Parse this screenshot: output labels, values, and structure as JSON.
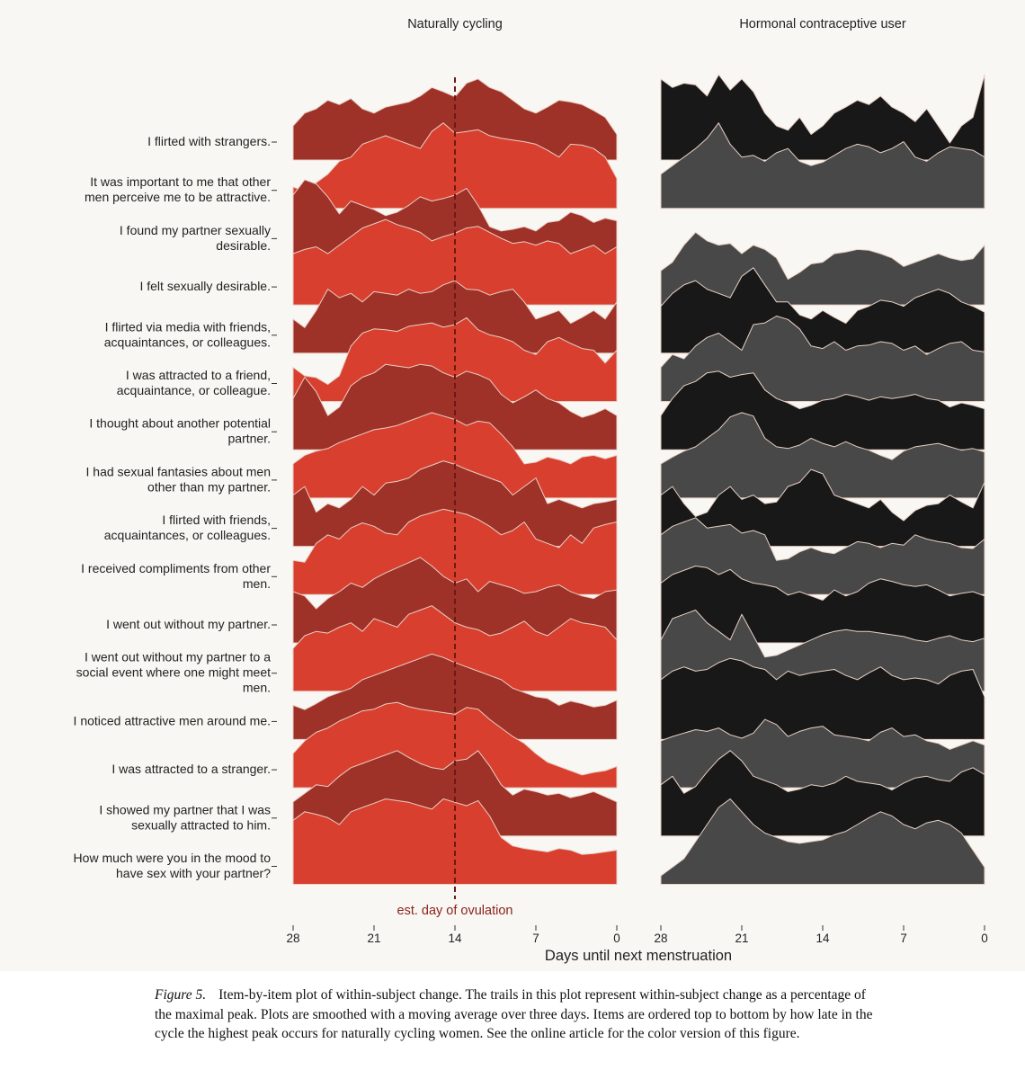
{
  "panel_titles": {
    "left": "Naturally cycling",
    "right": "Hormonal contraceptive user"
  },
  "colors": {
    "nc_dark": "#9e3128",
    "nc_light": "#d93f2f",
    "hc_dark": "#181818",
    "hc_light": "#484848",
    "ridge_outline": "#e8d0c4",
    "ovulation_line": "#6e1a14",
    "ovulation_text": "#8c231c"
  },
  "caption": {
    "figure_number": "Figure 5.",
    "text": "Item-by-item plot of within-subject change. The trails in this plot represent within-subject change as a percentage of the maximal peak. Plots are smoothed with a moving average over three days. Items are ordered top to bottom by how late in the cycle the highest peak occurs for naturally cycling women. See the online article for the color version of this figure."
  },
  "chart_data": {
    "type": "area",
    "subtype": "ridgeline",
    "xlabel": "Days until next menstruation",
    "xlim": [
      28,
      0
    ],
    "xticks": [
      28,
      21,
      14,
      7,
      0
    ],
    "ylabel": "",
    "y_unit": "% of maximal peak",
    "ylim": [
      0,
      100
    ],
    "annotation": {
      "label": "est. day of ovulation",
      "x": 14
    },
    "x": [
      28,
      27,
      26,
      25,
      24,
      23,
      22,
      21,
      20,
      19,
      18,
      17,
      16,
      15,
      14,
      13,
      12,
      11,
      10,
      9,
      8,
      7,
      6,
      5,
      4,
      3,
      2,
      1,
      0
    ],
    "items": [
      {
        "label": "I flirted with strangers.",
        "naturally_cycling": [
          40,
          55,
          60,
          70,
          65,
          72,
          60,
          55,
          62,
          65,
          68,
          75,
          85,
          80,
          74,
          90,
          95,
          85,
          80,
          70,
          60,
          55,
          62,
          70,
          68,
          65,
          58,
          50,
          30
        ],
        "hormonal_contraceptive": [
          95,
          85,
          90,
          88,
          75,
          100,
          82,
          95,
          80,
          55,
          40,
          35,
          50,
          30,
          40,
          55,
          62,
          70,
          65,
          75,
          62,
          55,
          45,
          60,
          40,
          20,
          40,
          50,
          100
        ]
      },
      {
        "label": "It was important to me that other men perceive me to be attractive.",
        "naturally_cycling": [
          25,
          20,
          30,
          40,
          55,
          60,
          75,
          80,
          85,
          80,
          75,
          70,
          90,
          100,
          88,
          90,
          92,
          85,
          82,
          80,
          78,
          75,
          68,
          60,
          75,
          74,
          70,
          60,
          35
        ],
        "hormonal_contraceptive": [
          40,
          50,
          60,
          70,
          82,
          100,
          75,
          60,
          62,
          55,
          65,
          70,
          55,
          50,
          54,
          62,
          70,
          75,
          72,
          65,
          70,
          78,
          60,
          55,
          65,
          72,
          70,
          68,
          60
        ]
      },
      {
        "label": "I found my partner sexually desirable.",
        "naturally_cycling": [
          72,
          90,
          85,
          70,
          50,
          65,
          60,
          55,
          48,
          52,
          60,
          70,
          65,
          68,
          72,
          80,
          60,
          35,
          30,
          32,
          35,
          30,
          40,
          42,
          52,
          48,
          40,
          45,
          42
        ]
      },
      {
        "label": "I felt sexually desirable.",
        "naturally_cycling": [
          60,
          65,
          68,
          60,
          70,
          80,
          90,
          95,
          100,
          94,
          90,
          85,
          75,
          80,
          84,
          90,
          92,
          85,
          78,
          72,
          74,
          70,
          75,
          72,
          60,
          65,
          70,
          60,
          68
        ],
        "hormonal_contraceptive": [
          40,
          50,
          70,
          85,
          75,
          70,
          72,
          60,
          70,
          65,
          55,
          30,
          38,
          48,
          50,
          60,
          62,
          65,
          64,
          60,
          55,
          45,
          50,
          55,
          60,
          55,
          52,
          54,
          70
        ]
      },
      {
        "label": "I flirted via media with friends, acquaintances, or colleagues.",
        "naturally_cycling": [
          40,
          30,
          50,
          75,
          65,
          70,
          60,
          72,
          70,
          68,
          75,
          70,
          72,
          80,
          85,
          75,
          74,
          68,
          72,
          75,
          60,
          40,
          45,
          50,
          35,
          42,
          50,
          40,
          60
        ],
        "hormonal_contraceptive": [
          55,
          70,
          80,
          85,
          75,
          70,
          65,
          90,
          100,
          80,
          60,
          60,
          45,
          40,
          50,
          42,
          35,
          50,
          55,
          62,
          60,
          55,
          65,
          70,
          75,
          70,
          60,
          55,
          48
        ]
      },
      {
        "label": "I was attracted to a friend, acquaintance, or colleague.",
        "naturally_cycling": [
          40,
          30,
          28,
          20,
          30,
          65,
          80,
          85,
          84,
          82,
          88,
          90,
          92,
          87,
          90,
          98,
          84,
          78,
          75,
          70,
          60,
          55,
          70,
          75,
          68,
          62,
          60,
          45,
          60
        ],
        "hormonal_contraceptive": [
          40,
          55,
          50,
          65,
          75,
          80,
          70,
          60,
          90,
          92,
          100,
          96,
          85,
          65,
          62,
          70,
          60,
          65,
          66,
          70,
          68,
          60,
          65,
          55,
          62,
          68,
          70,
          60,
          58
        ]
      },
      {
        "label": "I thought about another potential partner.",
        "naturally_cycling": [
          60,
          85,
          68,
          40,
          50,
          75,
          85,
          90,
          100,
          98,
          96,
          100,
          98,
          90,
          85,
          92,
          88,
          82,
          65,
          55,
          62,
          70,
          60,
          55,
          45,
          38,
          42,
          48,
          40
        ],
        "hormonal_contraceptive": [
          40,
          60,
          75,
          80,
          90,
          92,
          85,
          88,
          90,
          70,
          60,
          55,
          48,
          52,
          58,
          60,
          65,
          62,
          58,
          62,
          60,
          62,
          65,
          60,
          58,
          50,
          55,
          52,
          48
        ]
      },
      {
        "label": "I had sexual fantasies about men other than my partner.",
        "naturally_cycling": [
          40,
          50,
          55,
          58,
          65,
          70,
          75,
          80,
          82,
          85,
          90,
          95,
          100,
          96,
          92,
          85,
          90,
          88,
          75,
          60,
          40,
          42,
          48,
          45,
          40,
          48,
          50,
          46,
          50
        ],
        "hormonal_contraceptive": [
          40,
          48,
          55,
          60,
          70,
          80,
          95,
          100,
          96,
          70,
          60,
          58,
          62,
          70,
          64,
          60,
          66,
          60,
          56,
          50,
          45,
          55,
          60,
          62,
          64,
          60,
          56,
          58,
          54
        ]
      },
      {
        "label": "I flirted with friends, acquaintances, or colleagues.",
        "naturally_cycling": [
          60,
          70,
          40,
          50,
          45,
          55,
          70,
          60,
          74,
          76,
          80,
          90,
          95,
          100,
          96,
          90,
          85,
          80,
          75,
          60,
          70,
          80,
          50,
          55,
          50,
          45,
          50,
          52,
          55
        ],
        "hormonal_contraceptive": [
          60,
          70,
          50,
          35,
          40,
          60,
          70,
          55,
          60,
          50,
          52,
          70,
          75,
          90,
          85,
          60,
          55,
          50,
          45,
          55,
          40,
          30,
          42,
          48,
          50,
          60,
          52,
          45,
          75
        ]
      },
      {
        "label": "I received compliments from other men.",
        "naturally_cycling": [
          40,
          38,
          60,
          70,
          65,
          78,
          84,
          80,
          72,
          70,
          85,
          92,
          96,
          100,
          97,
          94,
          88,
          80,
          70,
          75,
          85,
          65,
          60,
          55,
          70,
          60,
          78,
          82,
          85
        ],
        "hormonal_contraceptive": [
          70,
          80,
          85,
          90,
          78,
          80,
          82,
          72,
          75,
          70,
          40,
          42,
          50,
          55,
          50,
          48,
          55,
          62,
          60,
          55,
          60,
          58,
          70,
          65,
          62,
          60,
          55,
          54,
          65
        ]
      },
      {
        "label": "I went out without my partner.",
        "naturally_cycling": [
          60,
          55,
          40,
          52,
          60,
          70,
          65,
          75,
          82,
          88,
          94,
          100,
          90,
          78,
          70,
          75,
          60,
          72,
          68,
          64,
          58,
          60,
          65,
          68,
          60,
          55,
          52,
          60,
          62
        ],
        "hormonal_contraceptive": [
          70,
          80,
          85,
          90,
          88,
          80,
          86,
          75,
          70,
          68,
          65,
          56,
          60,
          55,
          50,
          62,
          55,
          60,
          70,
          75,
          72,
          68,
          66,
          68,
          62,
          55,
          58,
          60,
          55
        ]
      },
      {
        "label": "I went out without my partner to a social event where one might meet men.",
        "naturally_cycling": [
          50,
          65,
          70,
          68,
          75,
          80,
          70,
          85,
          80,
          75,
          90,
          95,
          100,
          90,
          80,
          75,
          72,
          65,
          68,
          75,
          82,
          70,
          65,
          75,
          85,
          80,
          78,
          75,
          60
        ],
        "hormonal_contraceptive": [
          60,
          85,
          90,
          95,
          80,
          70,
          60,
          90,
          65,
          40,
          42,
          48,
          54,
          60,
          66,
          70,
          72,
          70,
          70,
          68,
          66,
          64,
          60,
          58,
          62,
          65,
          60,
          58,
          62
        ]
      },
      {
        "label": "I noticed attractive men around me.",
        "naturally_cycling": [
          40,
          35,
          42,
          50,
          55,
          60,
          70,
          75,
          80,
          85,
          90,
          95,
          100,
          96,
          90,
          85,
          80,
          75,
          70,
          60,
          55,
          50,
          48,
          40,
          45,
          42,
          38,
          40,
          46
        ],
        "hormonal_contraceptive": [
          70,
          80,
          85,
          80,
          82,
          90,
          95,
          92,
          85,
          82,
          70,
          80,
          75,
          78,
          80,
          82,
          75,
          70,
          78,
          85,
          75,
          70,
          72,
          70,
          65,
          75,
          80,
          82,
          50
        ]
      },
      {
        "label": "I was attracted to a stranger.",
        "naturally_cycling": [
          40,
          55,
          65,
          70,
          78,
          84,
          90,
          92,
          98,
          100,
          95,
          92,
          90,
          88,
          86,
          94,
          92,
          80,
          70,
          60,
          52,
          40,
          30,
          25,
          20,
          15,
          18,
          20,
          25
        ],
        "hormonal_contraceptive": [
          55,
          60,
          64,
          68,
          66,
          70,
          62,
          58,
          64,
          80,
          74,
          60,
          66,
          70,
          72,
          62,
          60,
          58,
          55,
          65,
          70,
          60,
          62,
          55,
          52,
          45,
          50,
          55,
          50
        ]
      },
      {
        "label": "I showed my partner that I was sexually attracted to him.",
        "naturally_cycling": [
          40,
          50,
          60,
          58,
          70,
          80,
          85,
          90,
          95,
          100,
          92,
          85,
          80,
          78,
          88,
          90,
          100,
          82,
          60,
          48,
          55,
          52,
          48,
          50,
          45,
          48,
          52,
          46,
          40
        ],
        "hormonal_contraceptive": [
          60,
          70,
          50,
          58,
          75,
          90,
          100,
          88,
          70,
          65,
          60,
          52,
          55,
          60,
          58,
          62,
          70,
          64,
          62,
          60,
          54,
          62,
          68,
          70,
          66,
          64,
          75,
          80,
          72
        ]
      },
      {
        "label": "How much were you in the mood to have sex with your partner?",
        "naturally_cycling": [
          75,
          85,
          82,
          78,
          70,
          85,
          90,
          95,
          100,
          98,
          96,
          92,
          88,
          100,
          96,
          92,
          98,
          80,
          55,
          45,
          42,
          40,
          38,
          42,
          40,
          35,
          36,
          38,
          40
        ],
        "hormonal_contraceptive": [
          10,
          20,
          30,
          50,
          70,
          90,
          100,
          85,
          70,
          60,
          55,
          50,
          48,
          50,
          52,
          58,
          62,
          70,
          78,
          85,
          80,
          70,
          65,
          72,
          75,
          70,
          60,
          40,
          20
        ]
      }
    ]
  }
}
